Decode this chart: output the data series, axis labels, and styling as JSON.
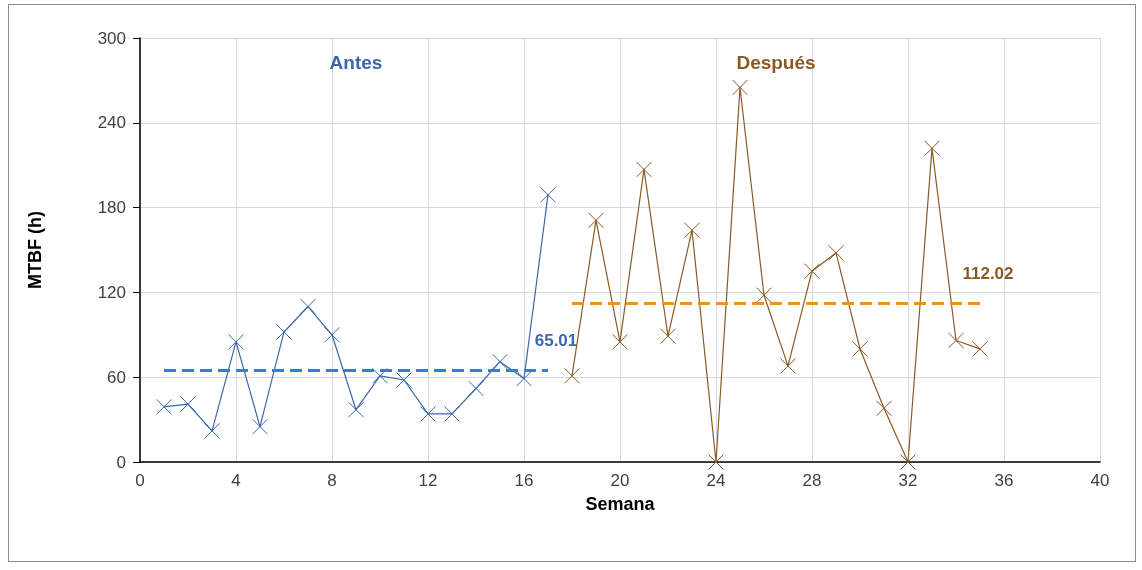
{
  "chart_data": {
    "type": "line",
    "xlabel": "Semana",
    "ylabel": "MTBF (h)",
    "xlim": [
      0,
      40
    ],
    "xticks": [
      0,
      4,
      8,
      12,
      16,
      20,
      24,
      28,
      32,
      36,
      40
    ],
    "ylim": [
      0,
      300
    ],
    "yticks": [
      0,
      60,
      120,
      180,
      240,
      300
    ],
    "grid": true,
    "marker": "cross",
    "line_style": "solid",
    "series": [
      {
        "name": "Antes",
        "color": "#3a68a8",
        "x": [
          1,
          2,
          3,
          4,
          5,
          6,
          7,
          8,
          9,
          10,
          11,
          12,
          13,
          14,
          15,
          16,
          17
        ],
        "values": [
          39,
          41,
          22,
          85,
          25,
          92,
          110,
          90,
          37,
          61,
          58,
          34,
          34,
          52,
          71,
          59,
          189
        ]
      },
      {
        "name": "Después",
        "color": "#8a5a24",
        "x": [
          18,
          19,
          20,
          21,
          22,
          23,
          24,
          25,
          26,
          27,
          28,
          29,
          30,
          31,
          32,
          33,
          34,
          35
        ],
        "values": [
          61,
          171,
          85,
          207,
          89,
          164,
          0,
          265,
          118,
          68,
          135,
          148,
          80,
          38,
          0,
          222,
          86,
          80
        ]
      }
    ],
    "ref_lines": [
      {
        "axis": "y",
        "value": 65.01,
        "label": "65.01",
        "color": "#2f80d8",
        "line_style": "dashed"
      },
      {
        "axis": "y",
        "value": 112.02,
        "label": "112.02",
        "color": "#f0901e",
        "line_style": "dashed"
      }
    ]
  }
}
